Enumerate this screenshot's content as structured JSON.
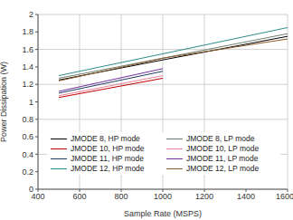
{
  "chart_data": {
    "type": "line",
    "x_label": "Sample Rate (MSPS)",
    "y_label": "Power Dissipation (W)",
    "x": [
      500,
      1000,
      1600
    ],
    "xlim": [
      400,
      1600
    ],
    "xticks": [
      400,
      600,
      800,
      1000,
      1200,
      1400,
      1600
    ],
    "ylim": [
      0,
      2
    ],
    "yticks": [
      0,
      0.2,
      0.4,
      0.6,
      0.8,
      1,
      1.2,
      1.4,
      1.6,
      1.8,
      2
    ],
    "grid": true,
    "legend": "bottom",
    "series": [
      {
        "name": "JMODE 8, HP mode",
        "color": "#000000",
        "values": [
          1.25,
          1.48,
          1.75
        ]
      },
      {
        "name": "JMODE 8, LP mode",
        "color": "#6f7f6f",
        "values": [
          1.27,
          1.5,
          1.78
        ]
      },
      {
        "name": "JMODE 10, HP mode",
        "color": "#c00000",
        "values": [
          1.05,
          1.27,
          null
        ]
      },
      {
        "name": "JMODE 10, LP mode",
        "color": "#e8829a",
        "values": [
          1.07,
          1.3,
          null
        ]
      },
      {
        "name": "JMODE 11, HP mode",
        "color": "#1f3a5f",
        "values": [
          1.1,
          1.35,
          null
        ]
      },
      {
        "name": "JMODE 11, LP mode",
        "color": "#7030a0",
        "values": [
          1.12,
          1.38,
          null
        ]
      },
      {
        "name": "JMODE 12, HP mode",
        "color": "#2e8b8b",
        "values": [
          1.3,
          1.55,
          1.85
        ]
      },
      {
        "name": "JMODE 12, LP mode",
        "color": "#8b5a2b",
        "values": [
          1.24,
          1.5,
          1.72
        ]
      }
    ]
  }
}
